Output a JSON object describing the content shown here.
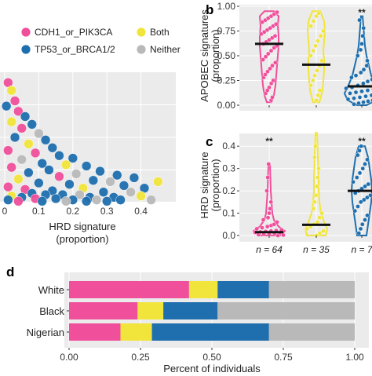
{
  "colors": {
    "CDH1_or_PIK3CA": "#ef4f9b",
    "Both": "#f1e53b",
    "TP53_or_BRCA1/2": "#1f6fae",
    "Neither": "#b9b9b9",
    "outline": "#555555",
    "median": "#111111",
    "panel_bg": "#ebebeb"
  },
  "legend": {
    "items": [
      {
        "key": "CDH1_or_PIK3CA",
        "label": "CDH1_or_PIK3CA"
      },
      {
        "key": "Both",
        "label": "Both"
      },
      {
        "key": "TP53_or_BRCA1/2",
        "label": "TP53_or_BRCA1/2"
      },
      {
        "key": "Neither",
        "label": "Neither"
      }
    ]
  },
  "panels": {
    "b": "b",
    "c": "c",
    "d": "d"
  },
  "chart_data": [
    {
      "id": "a",
      "type": "scatter",
      "xlabel": [
        "HRD signature",
        "(proportion)"
      ],
      "xlim": [
        0,
        0.47
      ],
      "xticks": [
        0.0,
        0.1,
        0.2,
        0.3,
        0.4
      ],
      "xtick_labels": [
        "0",
        "0.1",
        "0.2",
        "0.3",
        "0.4"
      ],
      "grid": true,
      "points": [
        {
          "x": 0.01,
          "y": 0.92,
          "g": "CDH1_or_PIK3CA"
        },
        {
          "x": 0.02,
          "y": 0.86,
          "g": "Both"
        },
        {
          "x": 0.03,
          "y": 0.78,
          "g": "CDH1_or_PIK3CA"
        },
        {
          "x": 0.005,
          "y": 0.74,
          "g": "TP53_or_BRCA1/2"
        },
        {
          "x": 0.04,
          "y": 0.7,
          "g": "CDH1_or_PIK3CA"
        },
        {
          "x": 0.06,
          "y": 0.66,
          "g": "TP53_or_BRCA1/2"
        },
        {
          "x": 0.02,
          "y": 0.62,
          "g": "Both"
        },
        {
          "x": 0.08,
          "y": 0.6,
          "g": "TP53_or_BRCA1/2"
        },
        {
          "x": 0.05,
          "y": 0.57,
          "g": "CDH1_or_PIK3CA"
        },
        {
          "x": 0.1,
          "y": 0.53,
          "g": "Neither"
        },
        {
          "x": 0.03,
          "y": 0.5,
          "g": "TP53_or_BRCA1/2"
        },
        {
          "x": 0.12,
          "y": 0.48,
          "g": "TP53_or_BRCA1/2"
        },
        {
          "x": 0.07,
          "y": 0.45,
          "g": "Both"
        },
        {
          "x": 0.14,
          "y": 0.42,
          "g": "TP53_or_BRCA1/2"
        },
        {
          "x": 0.01,
          "y": 0.4,
          "g": "CDH1_or_PIK3CA"
        },
        {
          "x": 0.09,
          "y": 0.38,
          "g": "CDH1_or_PIK3CA"
        },
        {
          "x": 0.16,
          "y": 0.36,
          "g": "TP53_or_BRCA1/2"
        },
        {
          "x": 0.2,
          "y": 0.34,
          "g": "TP53_or_BRCA1/2"
        },
        {
          "x": 0.05,
          "y": 0.33,
          "g": "Neither"
        },
        {
          "x": 0.11,
          "y": 0.3,
          "g": "TP53_or_BRCA1/2"
        },
        {
          "x": 0.18,
          "y": 0.29,
          "g": "Both"
        },
        {
          "x": 0.24,
          "y": 0.28,
          "g": "TP53_or_BRCA1/2"
        },
        {
          "x": 0.02,
          "y": 0.27,
          "g": "CDH1_or_PIK3CA"
        },
        {
          "x": 0.13,
          "y": 0.25,
          "g": "TP53_or_BRCA1/2"
        },
        {
          "x": 0.28,
          "y": 0.24,
          "g": "TP53_or_BRCA1/2"
        },
        {
          "x": 0.07,
          "y": 0.23,
          "g": "TP53_or_BRCA1/2"
        },
        {
          "x": 0.21,
          "y": 0.22,
          "g": "Neither"
        },
        {
          "x": 0.33,
          "y": 0.21,
          "g": "TP53_or_BRCA1/2"
        },
        {
          "x": 0.16,
          "y": 0.2,
          "g": "CDH1_or_PIK3CA"
        },
        {
          "x": 0.38,
          "y": 0.19,
          "g": "TP53_or_BRCA1/2"
        },
        {
          "x": 0.04,
          "y": 0.18,
          "g": "Both"
        },
        {
          "x": 0.26,
          "y": 0.17,
          "g": "TP53_or_BRCA1/2"
        },
        {
          "x": 0.31,
          "y": 0.16,
          "g": "Neither"
        },
        {
          "x": 0.45,
          "y": 0.16,
          "g": "Both"
        },
        {
          "x": 0.1,
          "y": 0.15,
          "g": "TP53_or_BRCA1/2"
        },
        {
          "x": 0.19,
          "y": 0.14,
          "g": "TP53_or_BRCA1/2"
        },
        {
          "x": 0.35,
          "y": 0.13,
          "g": "TP53_or_BRCA1/2"
        },
        {
          "x": 0.01,
          "y": 0.12,
          "g": "CDH1_or_PIK3CA"
        },
        {
          "x": 0.23,
          "y": 0.11,
          "g": "Both"
        },
        {
          "x": 0.41,
          "y": 0.11,
          "g": "TP53_or_BRCA1/2"
        },
        {
          "x": 0.06,
          "y": 0.1,
          "g": "CDH1_or_PIK3CA"
        },
        {
          "x": 0.14,
          "y": 0.09,
          "g": "TP53_or_BRCA1/2"
        },
        {
          "x": 0.29,
          "y": 0.08,
          "g": "TP53_or_BRCA1/2"
        },
        {
          "x": 0.37,
          "y": 0.08,
          "g": "Neither"
        },
        {
          "x": 0.08,
          "y": 0.07,
          "g": "TP53_or_BRCA1/2"
        },
        {
          "x": 0.12,
          "y": 0.06,
          "g": "TP53_or_BRCA1/2"
        },
        {
          "x": 0.17,
          "y": 0.06,
          "g": "TP53_or_BRCA1/2"
        },
        {
          "x": 0.22,
          "y": 0.06,
          "g": "Neither"
        },
        {
          "x": 0.02,
          "y": 0.05,
          "g": "Both"
        },
        {
          "x": 0.05,
          "y": 0.04,
          "g": "TP53_or_BRCA1/2"
        },
        {
          "x": 0.25,
          "y": 0.04,
          "g": "TP53_or_BRCA1/2"
        },
        {
          "x": 0.32,
          "y": 0.04,
          "g": "TP53_or_BRCA1/2"
        },
        {
          "x": 0.4,
          "y": 0.05,
          "g": "Both"
        },
        {
          "x": 0.09,
          "y": 0.03,
          "g": "CDH1_or_PIK3CA"
        },
        {
          "x": 0.15,
          "y": 0.03,
          "g": "TP53_or_BRCA1/2"
        },
        {
          "x": 0.01,
          "y": 0.02,
          "g": "TP53_or_BRCA1/2"
        },
        {
          "x": 0.2,
          "y": 0.02,
          "g": "TP53_or_BRCA1/2"
        },
        {
          "x": 0.27,
          "y": 0.02,
          "g": "Neither"
        },
        {
          "x": 0.34,
          "y": 0.02,
          "g": "TP53_or_BRCA1/2"
        },
        {
          "x": 0.43,
          "y": 0.02,
          "g": "Neither"
        },
        {
          "x": 0.04,
          "y": 0.01,
          "g": "CDH1_or_PIK3CA"
        },
        {
          "x": 0.11,
          "y": 0.01,
          "g": "TP53_or_BRCA1/2"
        },
        {
          "x": 0.18,
          "y": 0.01,
          "g": "Neither"
        },
        {
          "x": 0.24,
          "y": 0.01,
          "g": "TP53_or_BRCA1/2"
        },
        {
          "x": 0.3,
          "y": 0.01,
          "g": "TP53_or_BRCA1/2"
        }
      ]
    },
    {
      "id": "b",
      "type": "violin",
      "ylabel": [
        "APOBEC signatures",
        "(proportion)"
      ],
      "ylim": [
        0,
        1.0
      ],
      "yticks": [
        0.0,
        0.25,
        0.5,
        0.75,
        1.0
      ],
      "ytick_labels": [
        "0.00",
        "0.25",
        "0.50",
        "0.75",
        "1.00"
      ],
      "grid": true,
      "groups": [
        {
          "key": "CDH1_or_PIK3CA",
          "median": 0.62,
          "significance": "",
          "min": 0.03,
          "max": 0.95,
          "profile": [
            [
              0.03,
              3
            ],
            [
              0.1,
              6
            ],
            [
              0.2,
              8
            ],
            [
              0.3,
              9
            ],
            [
              0.4,
              10
            ],
            [
              0.5,
              11
            ],
            [
              0.6,
              12
            ],
            [
              0.7,
              12
            ],
            [
              0.8,
              11
            ],
            [
              0.9,
              12
            ],
            [
              0.95,
              6
            ]
          ],
          "points": [
            0.05,
            0.08,
            0.12,
            0.15,
            0.18,
            0.22,
            0.25,
            0.28,
            0.31,
            0.34,
            0.37,
            0.4,
            0.43,
            0.46,
            0.49,
            0.52,
            0.55,
            0.58,
            0.6,
            0.62,
            0.64,
            0.66,
            0.68,
            0.7,
            0.72,
            0.74,
            0.76,
            0.78,
            0.8,
            0.82,
            0.84,
            0.86,
            0.88,
            0.9,
            0.92,
            0.94
          ]
        },
        {
          "key": "Both",
          "median": 0.41,
          "significance": "",
          "min": 0.03,
          "max": 0.95,
          "profile": [
            [
              0.03,
              4
            ],
            [
              0.15,
              8
            ],
            [
              0.25,
              9
            ],
            [
              0.35,
              10
            ],
            [
              0.45,
              10
            ],
            [
              0.55,
              9
            ],
            [
              0.65,
              10
            ],
            [
              0.75,
              11
            ],
            [
              0.85,
              10
            ],
            [
              0.95,
              5
            ]
          ],
          "points": [
            0.05,
            0.1,
            0.15,
            0.2,
            0.25,
            0.3,
            0.35,
            0.4,
            0.45,
            0.5,
            0.55,
            0.6,
            0.65,
            0.7,
            0.75,
            0.8,
            0.85,
            0.9,
            0.93
          ]
        },
        {
          "key": "TP53_or_BRCA1/2",
          "median": 0.19,
          "significance": "**",
          "min": 0.0,
          "max": 0.9,
          "profile": [
            [
              0.0,
              6
            ],
            [
              0.05,
              18
            ],
            [
              0.12,
              22
            ],
            [
              0.2,
              17
            ],
            [
              0.3,
              12
            ],
            [
              0.4,
              9
            ],
            [
              0.5,
              6
            ],
            [
              0.6,
              4
            ],
            [
              0.7,
              3
            ],
            [
              0.8,
              2
            ],
            [
              0.9,
              1
            ]
          ],
          "points": [
            0.01,
            0.02,
            0.03,
            0.04,
            0.05,
            0.06,
            0.07,
            0.08,
            0.09,
            0.1,
            0.11,
            0.12,
            0.13,
            0.14,
            0.15,
            0.16,
            0.17,
            0.18,
            0.2,
            0.22,
            0.24,
            0.26,
            0.28,
            0.3,
            0.33,
            0.36,
            0.4,
            0.45,
            0.5,
            0.56,
            0.62,
            0.7,
            0.78,
            0.86
          ]
        }
      ]
    },
    {
      "id": "c",
      "type": "violin",
      "ylabel": [
        "HRD signature",
        "(proportion)"
      ],
      "ylim": [
        0,
        0.45
      ],
      "yticks": [
        0.0,
        0.1,
        0.2,
        0.3,
        0.4
      ],
      "ytick_labels": [
        "0.0",
        "0.1",
        "0.2",
        "0.3",
        "0.4"
      ],
      "grid": true,
      "groups": [
        {
          "key": "CDH1_or_PIK3CA",
          "median": 0.015,
          "significance": "**",
          "n_label": "n = 64",
          "min": 0.0,
          "max": 0.32,
          "profile": [
            [
              0.0,
              14
            ],
            [
              0.02,
              20
            ],
            [
              0.04,
              12
            ],
            [
              0.07,
              6
            ],
            [
              0.1,
              4
            ],
            [
              0.15,
              3
            ],
            [
              0.2,
              2
            ],
            [
              0.26,
              1.5
            ],
            [
              0.32,
              1
            ]
          ],
          "points": [
            0.0,
            0.002,
            0.004,
            0.006,
            0.008,
            0.01,
            0.012,
            0.014,
            0.016,
            0.018,
            0.02,
            0.022,
            0.025,
            0.03,
            0.035,
            0.04,
            0.045,
            0.05,
            0.06,
            0.07,
            0.08,
            0.1,
            0.12,
            0.15,
            0.2,
            0.26,
            0.32
          ]
        },
        {
          "key": "Both",
          "median": 0.048,
          "significance": "",
          "n_label": "n = 35",
          "min": 0.0,
          "max": 0.46,
          "profile": [
            [
              0.0,
              12
            ],
            [
              0.03,
              14
            ],
            [
              0.06,
              10
            ],
            [
              0.1,
              6
            ],
            [
              0.15,
              4
            ],
            [
              0.2,
              3
            ],
            [
              0.25,
              3
            ],
            [
              0.3,
              2.5
            ],
            [
              0.35,
              2
            ],
            [
              0.4,
              1.5
            ],
            [
              0.46,
              1
            ]
          ],
          "points": [
            0.0,
            0.01,
            0.02,
            0.03,
            0.04,
            0.05,
            0.06,
            0.08,
            0.1,
            0.12,
            0.15,
            0.18,
            0.22,
            0.26,
            0.3,
            0.35,
            0.4,
            0.45
          ]
        },
        {
          "key": "TP53_or_BRCA1/2",
          "median": 0.2,
          "significance": "**",
          "n_label": "n = 7",
          "min": 0.0,
          "max": 0.4,
          "profile": [
            [
              0.0,
              6
            ],
            [
              0.05,
              8
            ],
            [
              0.1,
              10
            ],
            [
              0.15,
              12
            ],
            [
              0.2,
              13
            ],
            [
              0.25,
              12
            ],
            [
              0.3,
              10
            ],
            [
              0.35,
              8
            ],
            [
              0.4,
              4
            ]
          ],
          "points": [
            0.01,
            0.03,
            0.05,
            0.07,
            0.09,
            0.11,
            0.13,
            0.15,
            0.16,
            0.17,
            0.18,
            0.19,
            0.2,
            0.21,
            0.22,
            0.23,
            0.24,
            0.26,
            0.28,
            0.3,
            0.32,
            0.34,
            0.36,
            0.38,
            0.4
          ]
        }
      ]
    },
    {
      "id": "d",
      "type": "bar",
      "orientation": "horizontal",
      "stacked": true,
      "xlabel": "Percent of individuals",
      "xlim": [
        0,
        1.0
      ],
      "xticks": [
        0.0,
        0.25,
        0.5,
        0.75,
        1.0
      ],
      "xtick_labels": [
        "0.00",
        "0.25",
        "0.50",
        "0.75",
        "1.00"
      ],
      "grid": true,
      "categories": [
        "White",
        "Black",
        "Nigerian"
      ],
      "series": [
        {
          "name": "CDH1_or_PIK3CA",
          "values": [
            0.42,
            0.24,
            0.18
          ]
        },
        {
          "name": "Both",
          "values": [
            0.1,
            0.09,
            0.11
          ]
        },
        {
          "name": "TP53_or_BRCA1/2",
          "values": [
            0.18,
            0.19,
            0.41
          ]
        },
        {
          "name": "Neither",
          "values": [
            0.3,
            0.48,
            0.3
          ]
        }
      ]
    }
  ]
}
